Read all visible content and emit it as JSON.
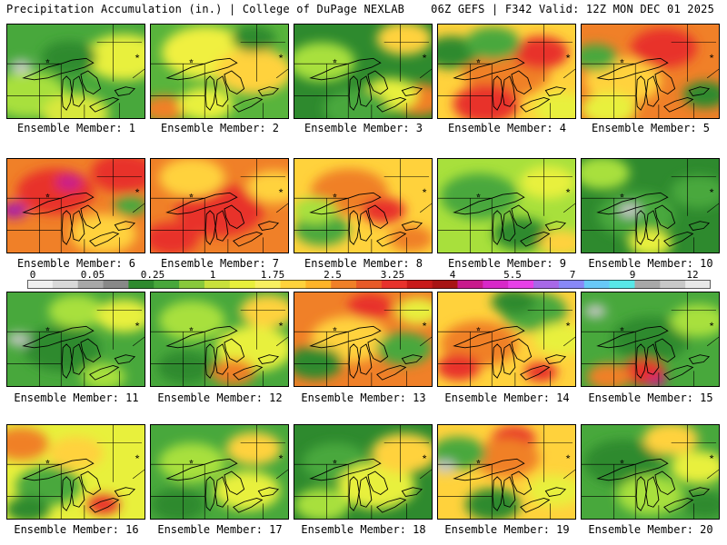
{
  "header": {
    "left": "Precipitation Accumulation (in.) | College of DuPage NEXLAB",
    "right": "06Z GEFS | F342 Valid: 12Z MON DEC 01 2025"
  },
  "caption_prefix": "Ensemble Member:",
  "members": [
    {
      "label": "Ensemble Member: 1",
      "base": "#48a83c",
      "blobs": [
        [
          "#a8e03c",
          0.15,
          0.75,
          0.35
        ],
        [
          "#e8f03c",
          0.85,
          0.35,
          0.35
        ],
        [
          "#c8c8c8",
          0.1,
          0.45,
          0.1
        ],
        [
          "#d8e83c",
          0.5,
          0.95,
          0.3
        ],
        [
          "#2e8a2e",
          0.45,
          0.35,
          0.25
        ]
      ]
    },
    {
      "label": "Ensemble Member: 2",
      "base": "#58b43c",
      "blobs": [
        [
          "#f0f040",
          0.4,
          0.3,
          0.4
        ],
        [
          "#ffd23c",
          0.75,
          0.5,
          0.35
        ],
        [
          "#f08028",
          0.1,
          0.9,
          0.2
        ],
        [
          "#2e8a2e",
          0.75,
          0.15,
          0.2
        ],
        [
          "#e8f03c",
          0.4,
          0.85,
          0.25
        ]
      ]
    },
    {
      "label": "Ensemble Member: 3",
      "base": "#2e8a2e",
      "blobs": [
        [
          "#a8e03c",
          0.2,
          0.4,
          0.3
        ],
        [
          "#ffd23c",
          0.8,
          0.15,
          0.25
        ],
        [
          "#f08028",
          0.9,
          0.8,
          0.25
        ],
        [
          "#e8f03c",
          0.7,
          0.75,
          0.25
        ],
        [
          "#48a83c",
          0.45,
          0.9,
          0.3
        ]
      ]
    },
    {
      "label": "Ensemble Member: 4",
      "base": "#ffd23c",
      "blobs": [
        [
          "#f08028",
          0.5,
          0.5,
          0.4
        ],
        [
          "#e8322c",
          0.35,
          0.85,
          0.3
        ],
        [
          "#e8322c",
          0.75,
          0.3,
          0.25
        ],
        [
          "#2e8a2e",
          0.1,
          0.3,
          0.25
        ],
        [
          "#48a83c",
          0.4,
          0.2,
          0.25
        ],
        [
          "#e8f03c",
          0.9,
          0.9,
          0.25
        ]
      ]
    },
    {
      "label": "Ensemble Member: 5",
      "base": "#f08028",
      "blobs": [
        [
          "#ffd23c",
          0.3,
          0.6,
          0.35
        ],
        [
          "#e8322c",
          0.6,
          0.25,
          0.3
        ],
        [
          "#48a83c",
          0.1,
          0.35,
          0.2
        ],
        [
          "#e8f03c",
          0.2,
          0.9,
          0.25
        ],
        [
          "#2e8a2e",
          0.9,
          0.75,
          0.2
        ]
      ]
    },
    {
      "label": "Ensemble Member: 6",
      "base": "#f08028",
      "blobs": [
        [
          "#e8322c",
          0.35,
          0.35,
          0.35
        ],
        [
          "#c81a8c",
          0.45,
          0.25,
          0.12
        ],
        [
          "#a81aa8",
          0.05,
          0.55,
          0.12
        ],
        [
          "#e8322c",
          0.85,
          0.15,
          0.3
        ],
        [
          "#ffd23c",
          0.7,
          0.8,
          0.3
        ],
        [
          "#48a83c",
          0.9,
          0.5,
          0.15
        ]
      ]
    },
    {
      "label": "Ensemble Member: 7",
      "base": "#f08028",
      "blobs": [
        [
          "#e8322c",
          0.5,
          0.55,
          0.4
        ],
        [
          "#ffd23c",
          0.3,
          0.2,
          0.3
        ],
        [
          "#e8322c",
          0.15,
          0.85,
          0.25
        ],
        [
          "#ffd23c",
          0.9,
          0.3,
          0.25
        ]
      ]
    },
    {
      "label": "Ensemble Member: 8",
      "base": "#ffd23c",
      "blobs": [
        [
          "#f08028",
          0.4,
          0.35,
          0.35
        ],
        [
          "#e8322c",
          0.65,
          0.55,
          0.2
        ],
        [
          "#48a83c",
          0.2,
          0.75,
          0.25
        ],
        [
          "#a8e03c",
          0.15,
          0.55,
          0.2
        ],
        [
          "#f08028",
          0.85,
          0.85,
          0.2
        ]
      ]
    },
    {
      "label": "Ensemble Member: 9",
      "base": "#a8e03c",
      "blobs": [
        [
          "#48a83c",
          0.3,
          0.4,
          0.35
        ],
        [
          "#2e8a2e",
          0.6,
          0.8,
          0.25
        ],
        [
          "#e8f03c",
          0.8,
          0.25,
          0.25
        ],
        [
          "#ffd23c",
          0.9,
          0.9,
          0.2
        ]
      ]
    },
    {
      "label": "Ensemble Member: 10",
      "base": "#2e8a2e",
      "blobs": [
        [
          "#48a83c",
          0.4,
          0.6,
          0.35
        ],
        [
          "#c8c8c8",
          0.35,
          0.55,
          0.1
        ],
        [
          "#a8e03c",
          0.15,
          0.15,
          0.25
        ],
        [
          "#e8f03c",
          0.5,
          0.9,
          0.2
        ],
        [
          "#48a83c",
          0.85,
          0.35,
          0.25
        ]
      ]
    },
    {
      "label": "Ensemble Member: 11",
      "base": "#48a83c",
      "blobs": [
        [
          "#2e8a2e",
          0.4,
          0.6,
          0.35
        ],
        [
          "#c8c8c8",
          0.08,
          0.5,
          0.1
        ],
        [
          "#a8e03c",
          0.5,
          0.2,
          0.25
        ],
        [
          "#e8f03c",
          0.85,
          0.25,
          0.25
        ],
        [
          "#a8e03c",
          0.7,
          0.9,
          0.2
        ]
      ]
    },
    {
      "label": "Ensemble Member: 12",
      "base": "#48a83c",
      "blobs": [
        [
          "#a8e03c",
          0.3,
          0.3,
          0.3
        ],
        [
          "#e8f03c",
          0.75,
          0.6,
          0.35
        ],
        [
          "#ffd23c",
          0.85,
          0.2,
          0.25
        ],
        [
          "#f08028",
          0.6,
          0.85,
          0.2
        ],
        [
          "#2e8a2e",
          0.25,
          0.8,
          0.25
        ]
      ]
    },
    {
      "label": "Ensemble Member: 13",
      "base": "#f08028",
      "blobs": [
        [
          "#ffd23c",
          0.4,
          0.5,
          0.35
        ],
        [
          "#e8322c",
          0.55,
          0.15,
          0.2
        ],
        [
          "#2e8a2e",
          0.15,
          0.75,
          0.25
        ],
        [
          "#48a83c",
          0.8,
          0.6,
          0.25
        ],
        [
          "#e8f03c",
          0.9,
          0.2,
          0.2
        ]
      ]
    },
    {
      "label": "Ensemble Member: 14",
      "base": "#ffd23c",
      "blobs": [
        [
          "#f08028",
          0.3,
          0.55,
          0.35
        ],
        [
          "#e8322c",
          0.15,
          0.8,
          0.2
        ],
        [
          "#e8322c",
          0.75,
          0.85,
          0.15
        ],
        [
          "#48a83c",
          0.7,
          0.2,
          0.3
        ],
        [
          "#2e8a2e",
          0.55,
          0.1,
          0.2
        ],
        [
          "#e8f03c",
          0.9,
          0.5,
          0.25
        ]
      ]
    },
    {
      "label": "Ensemble Member: 15",
      "base": "#48a83c",
      "blobs": [
        [
          "#2e8a2e",
          0.5,
          0.5,
          0.35
        ],
        [
          "#e8322c",
          0.45,
          0.85,
          0.2
        ],
        [
          "#c81a8c",
          0.55,
          0.95,
          0.08
        ],
        [
          "#f08028",
          0.2,
          0.9,
          0.2
        ],
        [
          "#a8e03c",
          0.85,
          0.3,
          0.25
        ],
        [
          "#c8c8c8",
          0.1,
          0.2,
          0.1
        ]
      ]
    },
    {
      "label": "Ensemble Member: 16",
      "base": "#e8f03c",
      "blobs": [
        [
          "#f08028",
          0.1,
          0.2,
          0.25
        ],
        [
          "#48a83c",
          0.3,
          0.65,
          0.3
        ],
        [
          "#e8322c",
          0.7,
          0.85,
          0.15
        ],
        [
          "#ffd23c",
          0.5,
          0.3,
          0.25
        ],
        [
          "#2e8a2e",
          0.15,
          0.9,
          0.2
        ]
      ]
    },
    {
      "label": "Ensemble Member: 17",
      "base": "#48a83c",
      "blobs": [
        [
          "#a8e03c",
          0.3,
          0.4,
          0.3
        ],
        [
          "#e8f03c",
          0.7,
          0.7,
          0.3
        ],
        [
          "#ffd23c",
          0.75,
          0.25,
          0.25
        ],
        [
          "#2e8a2e",
          0.2,
          0.85,
          0.25
        ]
      ]
    },
    {
      "label": "Ensemble Member: 18",
      "base": "#2e8a2e",
      "blobs": [
        [
          "#48a83c",
          0.3,
          0.4,
          0.3
        ],
        [
          "#e8f03c",
          0.6,
          0.65,
          0.35
        ],
        [
          "#ffd23c",
          0.8,
          0.3,
          0.3
        ],
        [
          "#a8e03c",
          0.2,
          0.85,
          0.25
        ]
      ]
    },
    {
      "label": "Ensemble Member: 19",
      "base": "#ffd23c",
      "blobs": [
        [
          "#e8322c",
          0.55,
          0.15,
          0.2
        ],
        [
          "#f08028",
          0.5,
          0.35,
          0.3
        ],
        [
          "#48a83c",
          0.15,
          0.3,
          0.25
        ],
        [
          "#c8c8c8",
          0.05,
          0.45,
          0.1
        ],
        [
          "#2e8a2e",
          0.4,
          0.85,
          0.25
        ],
        [
          "#e8f03c",
          0.85,
          0.7,
          0.25
        ]
      ]
    },
    {
      "label": "Ensemble Member: 20",
      "base": "#48a83c",
      "blobs": [
        [
          "#2e8a2e",
          0.3,
          0.4,
          0.35
        ],
        [
          "#e8f03c",
          0.85,
          0.45,
          0.25
        ],
        [
          "#ffd23c",
          0.65,
          0.15,
          0.25
        ],
        [
          "#a8e03c",
          0.5,
          0.75,
          0.3
        ],
        [
          "#2e8a2e",
          0.9,
          0.85,
          0.2
        ]
      ]
    }
  ],
  "colorbar": {
    "labels": [
      "0",
      "0.05",
      "0.25",
      "1",
      "1.75",
      "2.5",
      "3.25",
      "4",
      "5.5",
      "7",
      "9",
      "12"
    ],
    "colors": [
      "#f0f0f0",
      "#d8d8d8",
      "#a8a8a8",
      "#888888",
      "#2e8a2e",
      "#48a83c",
      "#88c83c",
      "#c8e03c",
      "#e8f03c",
      "#f8f060",
      "#ffd23c",
      "#ffb428",
      "#f08028",
      "#e85a28",
      "#e8322c",
      "#c81a1a",
      "#a81414",
      "#c81a8c",
      "#d828c8",
      "#e840e8",
      "#a868e8",
      "#8888f8",
      "#68c8f8",
      "#58e8e8",
      "#a8a8a8",
      "#c8c8c8",
      "#e8e8e8"
    ]
  }
}
